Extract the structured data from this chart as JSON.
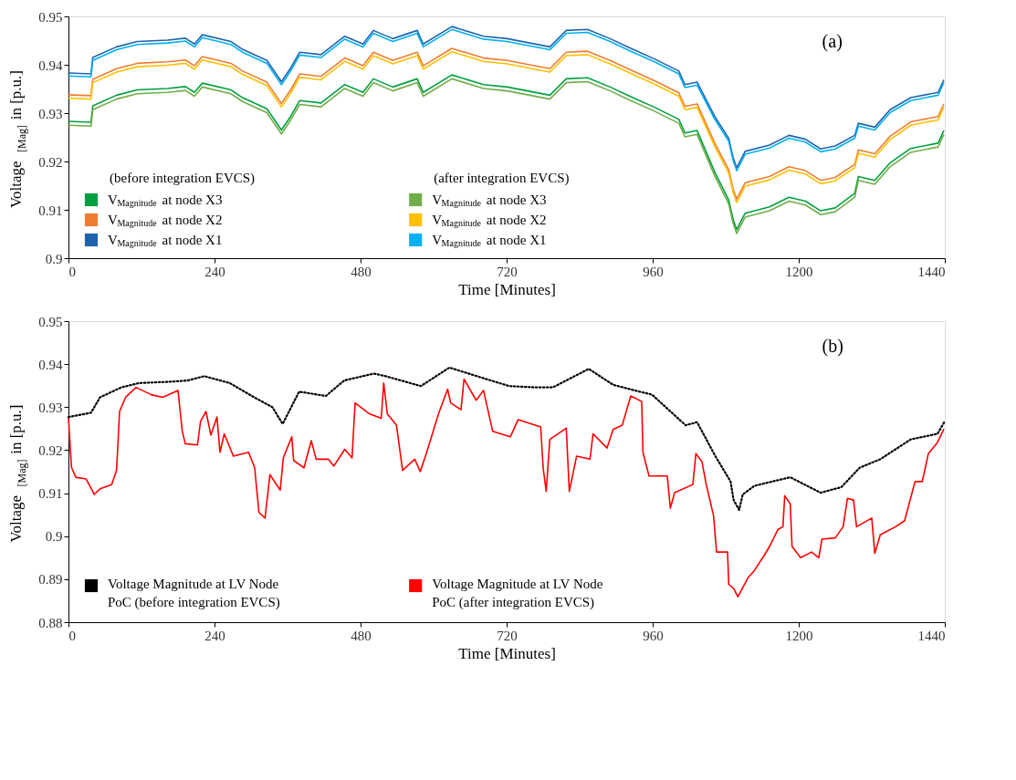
{
  "chart_data": [
    {
      "type": "line",
      "title": "(a)",
      "xlabel": "Time [Minutes]",
      "ylabel": "Voltage $_{[Mag]}$ in [p.u.]",
      "xlim": [
        0,
        1440
      ],
      "xticks": [
        0,
        240,
        480,
        720,
        960,
        1200,
        1440
      ],
      "ylim": [
        0.9,
        0.95
      ],
      "yticks": [
        0.9,
        0.91,
        0.92,
        0.93,
        0.94,
        0.95
      ],
      "grid": false,
      "legend": "bottom left",
      "line_style": "solid",
      "annotations": [
        "(before integration EVCS)",
        "(after integration EVCS)"
      ],
      "x": [
        0,
        37,
        40,
        79,
        113,
        163,
        192,
        207,
        220,
        267,
        286,
        326,
        350,
        365,
        380,
        415,
        454,
        484,
        501,
        533,
        573,
        583,
        630,
        682,
        721,
        791,
        818,
        853,
        890,
        924,
        963,
        1003,
        1013,
        1033,
        1062,
        1085,
        1092,
        1098,
        1112,
        1152,
        1184,
        1211,
        1236,
        1260,
        1292,
        1298,
        1325,
        1350,
        1384,
        1429,
        1438
      ],
      "series": [
        {
          "name": "V$_{Magnitude}$ at node X3",
          "color": "#00a040",
          "values": [
            0.9283,
            0.9281,
            0.9315,
            0.9337,
            0.9348,
            0.9351,
            0.9355,
            0.9343,
            0.9362,
            0.9348,
            0.9332,
            0.9309,
            0.9265,
            0.9293,
            0.9326,
            0.9321,
            0.9359,
            0.9343,
            0.9371,
            0.9354,
            0.9371,
            0.9343,
            0.9379,
            0.9359,
            0.9354,
            0.9337,
            0.9371,
            0.9373,
            0.9354,
            0.9334,
            0.9312,
            0.9287,
            0.9259,
            0.9264,
            0.9178,
            0.912,
            0.9081,
            0.9059,
            0.9093,
            0.9106,
            0.9126,
            0.9118,
            0.9098,
            0.9104,
            0.9134,
            0.9169,
            0.9161,
            0.9197,
            0.9227,
            0.9238,
            0.9263
          ]
        },
        {
          "name": "V$_{Magnitude}$ at node X2",
          "color": "#ed7d31",
          "values": [
            0.9338,
            0.9336,
            0.937,
            0.9392,
            0.9403,
            0.9406,
            0.941,
            0.9398,
            0.9417,
            0.9403,
            0.9387,
            0.9364,
            0.932,
            0.9348,
            0.9381,
            0.9376,
            0.9414,
            0.9398,
            0.9426,
            0.9409,
            0.9426,
            0.9398,
            0.9434,
            0.9414,
            0.9409,
            0.9392,
            0.9426,
            0.9428,
            0.9409,
            0.9389,
            0.9367,
            0.9342,
            0.9314,
            0.9319,
            0.9238,
            0.9183,
            0.9144,
            0.9122,
            0.9156,
            0.9169,
            0.9189,
            0.9181,
            0.9161,
            0.9167,
            0.9194,
            0.9224,
            0.9216,
            0.9252,
            0.9282,
            0.9293,
            0.9318
          ]
        },
        {
          "name": "V$_{Magnitude}$ at node X1",
          "color": "#1f63ad",
          "values": [
            0.9383,
            0.9381,
            0.9415,
            0.9437,
            0.9448,
            0.9451,
            0.9455,
            0.9443,
            0.9462,
            0.9448,
            0.9432,
            0.9409,
            0.9365,
            0.9393,
            0.9426,
            0.9421,
            0.9459,
            0.9443,
            0.9471,
            0.9454,
            0.9471,
            0.9443,
            0.9479,
            0.9459,
            0.9454,
            0.9437,
            0.9471,
            0.9473,
            0.9454,
            0.9434,
            0.9412,
            0.9387,
            0.9359,
            0.9364,
            0.9293,
            0.9248,
            0.9209,
            0.9187,
            0.9221,
            0.9234,
            0.9254,
            0.9246,
            0.9226,
            0.9232,
            0.9254,
            0.9279,
            0.9271,
            0.9307,
            0.9332,
            0.9343,
            0.9368
          ]
        },
        {
          "name": "V$_{Magnitude}$ at node X3",
          "color": "#70ad47",
          "values": [
            0.9275,
            0.9273,
            0.9307,
            0.9329,
            0.934,
            0.9343,
            0.9347,
            0.9335,
            0.9354,
            0.934,
            0.9324,
            0.9301,
            0.9257,
            0.9285,
            0.9318,
            0.9313,
            0.9351,
            0.9335,
            0.9363,
            0.9346,
            0.9363,
            0.9335,
            0.9371,
            0.9351,
            0.9346,
            0.9329,
            0.9363,
            0.9365,
            0.9346,
            0.9326,
            0.9304,
            0.9279,
            0.9251,
            0.9256,
            0.917,
            0.9112,
            0.9073,
            0.9051,
            0.9085,
            0.9098,
            0.9118,
            0.911,
            0.909,
            0.9096,
            0.9126,
            0.9161,
            0.9153,
            0.9189,
            0.9219,
            0.923,
            0.9255
          ]
        },
        {
          "name": "V$_{Magnitude}$ at node X2",
          "color": "#ffc000",
          "values": [
            0.9331,
            0.9329,
            0.9363,
            0.9385,
            0.9396,
            0.9399,
            0.9403,
            0.9391,
            0.941,
            0.9396,
            0.938,
            0.9357,
            0.9313,
            0.9341,
            0.9374,
            0.9369,
            0.9407,
            0.9391,
            0.9419,
            0.9402,
            0.9419,
            0.9391,
            0.9427,
            0.9407,
            0.9402,
            0.9385,
            0.9419,
            0.9421,
            0.9402,
            0.9382,
            0.936,
            0.9335,
            0.9307,
            0.9312,
            0.9231,
            0.9176,
            0.9137,
            0.9115,
            0.9149,
            0.9162,
            0.9182,
            0.9174,
            0.9154,
            0.916,
            0.9187,
            0.9217,
            0.9209,
            0.9245,
            0.9275,
            0.9286,
            0.9311
          ]
        },
        {
          "name": "V$_{Magnitude}$ at node X1",
          "color": "#00b0f0",
          "values": [
            0.9377,
            0.9375,
            0.9409,
            0.9431,
            0.9442,
            0.9445,
            0.9449,
            0.9437,
            0.9456,
            0.9442,
            0.9426,
            0.9403,
            0.9359,
            0.9387,
            0.942,
            0.9415,
            0.9453,
            0.9437,
            0.9465,
            0.9448,
            0.9465,
            0.9437,
            0.9473,
            0.9453,
            0.9448,
            0.9431,
            0.9465,
            0.9467,
            0.9448,
            0.9428,
            0.9406,
            0.9381,
            0.9353,
            0.9358,
            0.9287,
            0.9242,
            0.9203,
            0.9181,
            0.9215,
            0.9228,
            0.9248,
            0.924,
            0.922,
            0.9226,
            0.9248,
            0.9273,
            0.9265,
            0.9301,
            0.9326,
            0.9337,
            0.9362
          ]
        }
      ]
    },
    {
      "type": "line",
      "title": "(b)",
      "xlabel": "Time [Minutes]",
      "ylabel": "Voltage $_{[Mag]}$ in [p.u.]",
      "xlim": [
        0,
        1440
      ],
      "xticks": [
        0,
        240,
        480,
        720,
        960,
        1200,
        1440
      ],
      "ylim": [
        0.88,
        0.95
      ],
      "yticks": [
        0.88,
        0.89,
        0.9,
        0.91,
        0.92,
        0.93,
        0.94,
        0.95
      ],
      "grid": false,
      "legend": "bottom left",
      "series": [
        {
          "name": "Voltage Magnitude at LV Node PoC (before integration EVCS)",
          "color": "#000000",
          "line_style": "dotted",
          "x": [
            0,
            37,
            52,
            87,
            116,
            166,
            196,
            223,
            265,
            305,
            335,
            352,
            379,
            423,
            453,
            502,
            521,
            579,
            626,
            678,
            724,
            766,
            796,
            855,
            895,
            930,
            959,
            1014,
            1033,
            1063,
            1088,
            1093,
            1102,
            1108,
            1127,
            1186,
            1236,
            1270,
            1300,
            1334,
            1384,
            1428,
            1439
          ],
          "values": [
            0.9277,
            0.9287,
            0.9323,
            0.9346,
            0.9356,
            0.9359,
            0.9362,
            0.9372,
            0.9356,
            0.9323,
            0.93,
            0.9261,
            0.9336,
            0.9326,
            0.9362,
            0.9378,
            0.9372,
            0.9349,
            0.9392,
            0.9369,
            0.9349,
            0.9346,
            0.9346,
            0.9389,
            0.9352,
            0.9339,
            0.9329,
            0.9258,
            0.9265,
            0.9186,
            0.9127,
            0.9084,
            0.9061,
            0.9097,
            0.9117,
            0.9137,
            0.9101,
            0.9114,
            0.9159,
            0.9179,
            0.9225,
            0.9238,
            0.9265
          ]
        },
        {
          "name": "Voltage Magnitude at LV Node PoC (after integration EVCS)",
          "color": "#ff0000",
          "line_style": "solid",
          "x": [
            0,
            5,
            12,
            29,
            39,
            42,
            52,
            71,
            79,
            84,
            94,
            111,
            136,
            155,
            180,
            187,
            192,
            212,
            217,
            226,
            234,
            244,
            249,
            256,
            271,
            296,
            306,
            313,
            323,
            331,
            348,
            353,
            367,
            370,
            387,
            399,
            407,
            427,
            436,
            454,
            466,
            471,
            495,
            514,
            518,
            524,
            539,
            549,
            569,
            578,
            588,
            598,
            608,
            623,
            628,
            645,
            650,
            670,
            682,
            697,
            726,
            739,
            776,
            780,
            785,
            791,
            818,
            823,
            835,
            857,
            862,
            885,
            895,
            910,
            924,
            942,
            944,
            954,
            984,
            989,
            996,
            1026,
            1031,
            1041,
            1048,
            1060,
            1065,
            1083,
            1085,
            1093,
            1100,
            1117,
            1127,
            1144,
            1152,
            1166,
            1174,
            1177,
            1186,
            1189,
            1203,
            1221,
            1233,
            1238,
            1260,
            1273,
            1280,
            1290,
            1295,
            1320,
            1325,
            1334,
            1359,
            1374,
            1391,
            1403,
            1413,
            1428,
            1438
          ],
          "values": [
            0.9274,
            0.916,
            0.9137,
            0.9133,
            0.9107,
            0.9097,
            0.911,
            0.912,
            0.9153,
            0.929,
            0.9323,
            0.9346,
            0.9329,
            0.9323,
            0.9339,
            0.9244,
            0.9215,
            0.9212,
            0.9267,
            0.929,
            0.9235,
            0.9277,
            0.9195,
            0.9238,
            0.9186,
            0.9195,
            0.9159,
            0.9055,
            0.9042,
            0.9143,
            0.9107,
            0.9182,
            0.9231,
            0.9176,
            0.9159,
            0.9222,
            0.9179,
            0.9179,
            0.9163,
            0.9202,
            0.9182,
            0.931,
            0.9284,
            0.9274,
            0.9356,
            0.9284,
            0.9258,
            0.9153,
            0.9179,
            0.915,
            0.9192,
            0.9238,
            0.9284,
            0.9342,
            0.931,
            0.9294,
            0.9365,
            0.9316,
            0.9339,
            0.9244,
            0.9231,
            0.9271,
            0.9254,
            0.9159,
            0.9104,
            0.9225,
            0.9251,
            0.9104,
            0.9186,
            0.9179,
            0.9238,
            0.9205,
            0.9248,
            0.9258,
            0.9326,
            0.9313,
            0.9195,
            0.914,
            0.914,
            0.9065,
            0.9101,
            0.912,
            0.9192,
            0.9173,
            0.912,
            0.9048,
            0.8963,
            0.8963,
            0.8888,
            0.8878,
            0.8859,
            0.8904,
            0.892,
            0.8957,
            0.8976,
            0.9016,
            0.9022,
            0.9094,
            0.9075,
            0.8976,
            0.895,
            0.8963,
            0.895,
            0.8993,
            0.8996,
            0.9022,
            0.9088,
            0.9084,
            0.9022,
            0.9042,
            0.896,
            0.9003,
            0.9022,
            0.9036,
            0.9127,
            0.9127,
            0.9192,
            0.9218,
            0.9248
          ]
        }
      ]
    }
  ]
}
